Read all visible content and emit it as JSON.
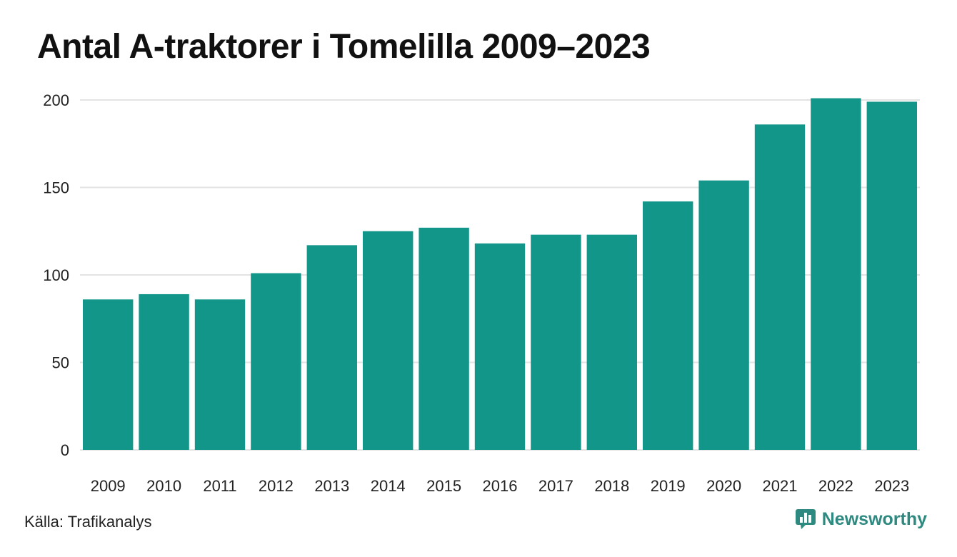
{
  "chart_data": {
    "type": "bar",
    "title": "Antal A-traktorer i Tomelilla 2009–2023",
    "categories": [
      "2009",
      "2010",
      "2011",
      "2012",
      "2013",
      "2014",
      "2015",
      "2016",
      "2017",
      "2018",
      "2019",
      "2020",
      "2021",
      "2022",
      "2023"
    ],
    "values": [
      86,
      89,
      86,
      101,
      117,
      125,
      127,
      118,
      123,
      123,
      142,
      154,
      186,
      201,
      199
    ],
    "ylim": [
      0,
      200
    ],
    "yticks": [
      "0",
      "50",
      "100",
      "150",
      "200"
    ],
    "xlabel": "",
    "ylabel": "",
    "grid": true,
    "bar_color": "#13968a"
  },
  "footer": {
    "source": "Källa: Trafikanalys",
    "brand": "Newsworthy",
    "brand_icon": "bar-chart-speech-icon",
    "brand_color": "#2e8a80"
  }
}
